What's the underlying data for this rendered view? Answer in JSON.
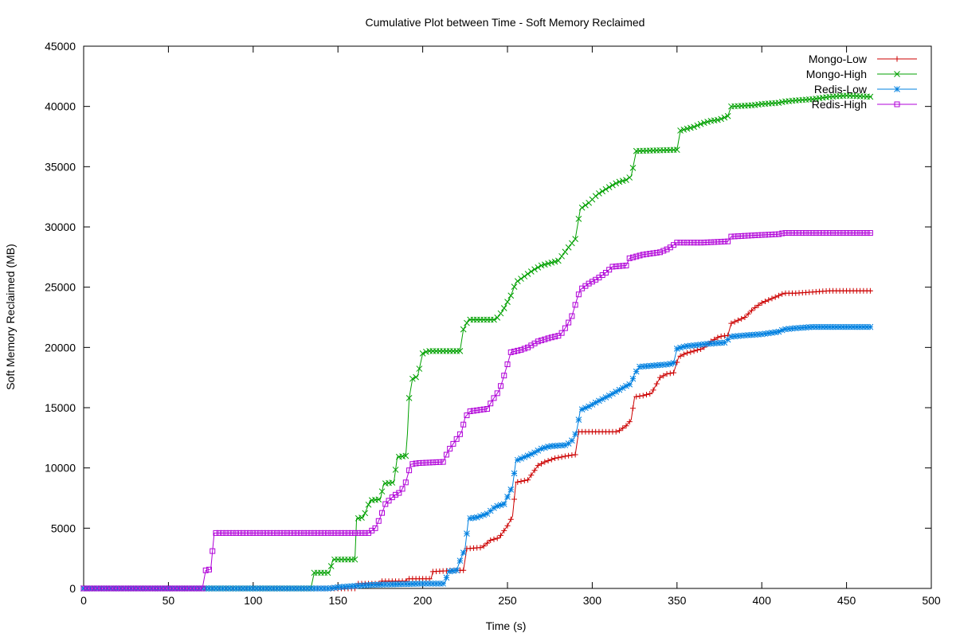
{
  "chart_data": {
    "type": "line",
    "title": "Cumulative Plot between Time - Soft Memory Reclaimed",
    "xlabel": "Time (s)",
    "ylabel": "Soft Memory Reclaimed (MB)",
    "xlim": [
      0,
      500
    ],
    "ylim": [
      0,
      45000
    ],
    "xticks": [
      0,
      50,
      100,
      150,
      200,
      250,
      300,
      350,
      400,
      450,
      500
    ],
    "yticks": [
      0,
      5000,
      10000,
      15000,
      20000,
      25000,
      30000,
      35000,
      40000,
      45000
    ],
    "grid": false,
    "legend_position": "top-right",
    "series": [
      {
        "name": "Mongo-Low",
        "color": "#cc0000",
        "marker": "plus",
        "points": [
          [
            0,
            0
          ],
          [
            160,
            0
          ],
          [
            161,
            400
          ],
          [
            175,
            400
          ],
          [
            176,
            600
          ],
          [
            190,
            600
          ],
          [
            191,
            800
          ],
          [
            205,
            800
          ],
          [
            206,
            1400
          ],
          [
            220,
            1500
          ],
          [
            224,
            1500
          ],
          [
            226,
            3300
          ],
          [
            235,
            3400
          ],
          [
            240,
            4000
          ],
          [
            245,
            4200
          ],
          [
            250,
            5200
          ],
          [
            253,
            6000
          ],
          [
            255,
            8800
          ],
          [
            262,
            9000
          ],
          [
            268,
            10200
          ],
          [
            272,
            10500
          ],
          [
            278,
            10800
          ],
          [
            285,
            11000
          ],
          [
            290,
            11100
          ],
          [
            292,
            13000
          ],
          [
            315,
            13000
          ],
          [
            320,
            13500
          ],
          [
            323,
            14000
          ],
          [
            325,
            15900
          ],
          [
            330,
            16000
          ],
          [
            335,
            16200
          ],
          [
            340,
            17500
          ],
          [
            344,
            17800
          ],
          [
            348,
            17900
          ],
          [
            351,
            19200
          ],
          [
            355,
            19500
          ],
          [
            360,
            19700
          ],
          [
            365,
            19900
          ],
          [
            370,
            20500
          ],
          [
            375,
            20900
          ],
          [
            380,
            21000
          ],
          [
            382,
            22000
          ],
          [
            390,
            22500
          ],
          [
            395,
            23200
          ],
          [
            400,
            23700
          ],
          [
            405,
            24000
          ],
          [
            410,
            24300
          ],
          [
            413,
            24500
          ],
          [
            420,
            24500
          ],
          [
            430,
            24600
          ],
          [
            440,
            24700
          ],
          [
            465,
            24700
          ]
        ]
      },
      {
        "name": "Mongo-High",
        "color": "#00a000",
        "marker": "x",
        "points": [
          [
            0,
            0
          ],
          [
            134,
            0
          ],
          [
            136,
            1300
          ],
          [
            145,
            1300
          ],
          [
            147,
            2400
          ],
          [
            160,
            2400
          ],
          [
            161,
            5800
          ],
          [
            165,
            5900
          ],
          [
            169,
            7300
          ],
          [
            175,
            7400
          ],
          [
            177,
            8700
          ],
          [
            183,
            8800
          ],
          [
            185,
            10900
          ],
          [
            190,
            11000
          ],
          [
            191,
            12800
          ],
          [
            192,
            15800
          ],
          [
            194,
            17400
          ],
          [
            197,
            17600
          ],
          [
            200,
            19500
          ],
          [
            203,
            19700
          ],
          [
            222,
            19700
          ],
          [
            224,
            21500
          ],
          [
            227,
            22300
          ],
          [
            243,
            22300
          ],
          [
            247,
            23000
          ],
          [
            252,
            24300
          ],
          [
            255,
            25400
          ],
          [
            260,
            25900
          ],
          [
            265,
            26400
          ],
          [
            270,
            26800
          ],
          [
            275,
            27000
          ],
          [
            280,
            27200
          ],
          [
            286,
            28300
          ],
          [
            290,
            29000
          ],
          [
            293,
            31500
          ],
          [
            298,
            32000
          ],
          [
            303,
            32700
          ],
          [
            310,
            33300
          ],
          [
            315,
            33700
          ],
          [
            320,
            33900
          ],
          [
            323,
            34200
          ],
          [
            326,
            36300
          ],
          [
            350,
            36400
          ],
          [
            352,
            38000
          ],
          [
            360,
            38300
          ],
          [
            365,
            38600
          ],
          [
            370,
            38800
          ],
          [
            375,
            38900
          ],
          [
            380,
            39200
          ],
          [
            382,
            40000
          ],
          [
            395,
            40100
          ],
          [
            400,
            40200
          ],
          [
            410,
            40300
          ],
          [
            413,
            40400
          ],
          [
            420,
            40500
          ],
          [
            430,
            40600
          ],
          [
            440,
            40800
          ],
          [
            450,
            40900
          ],
          [
            465,
            40800
          ]
        ]
      },
      {
        "name": "Redis-Low",
        "color": "#0080e0",
        "marker": "star",
        "points": [
          [
            0,
            0
          ],
          [
            145,
            0
          ],
          [
            150,
            100
          ],
          [
            160,
            200
          ],
          [
            170,
            300
          ],
          [
            185,
            350
          ],
          [
            200,
            400
          ],
          [
            213,
            400
          ],
          [
            215,
            1400
          ],
          [
            220,
            1500
          ],
          [
            222,
            2300
          ],
          [
            225,
            3300
          ],
          [
            227,
            5800
          ],
          [
            232,
            5900
          ],
          [
            238,
            6200
          ],
          [
            243,
            6800
          ],
          [
            248,
            7000
          ],
          [
            250,
            7600
          ],
          [
            253,
            8500
          ],
          [
            255,
            10600
          ],
          [
            260,
            10900
          ],
          [
            265,
            11200
          ],
          [
            270,
            11600
          ],
          [
            275,
            11800
          ],
          [
            285,
            11900
          ],
          [
            289,
            12400
          ],
          [
            291,
            13200
          ],
          [
            293,
            14800
          ],
          [
            298,
            15100
          ],
          [
            303,
            15500
          ],
          [
            310,
            16000
          ],
          [
            315,
            16400
          ],
          [
            320,
            16800
          ],
          [
            323,
            17000
          ],
          [
            325,
            17800
          ],
          [
            328,
            18400
          ],
          [
            345,
            18600
          ],
          [
            348,
            18700
          ],
          [
            350,
            19900
          ],
          [
            355,
            20100
          ],
          [
            362,
            20200
          ],
          [
            368,
            20300
          ],
          [
            378,
            20400
          ],
          [
            382,
            20900
          ],
          [
            390,
            21000
          ],
          [
            400,
            21100
          ],
          [
            410,
            21300
          ],
          [
            413,
            21500
          ],
          [
            420,
            21600
          ],
          [
            430,
            21700
          ],
          [
            440,
            21700
          ],
          [
            465,
            21700
          ]
        ]
      },
      {
        "name": "Redis-High",
        "color": "#b000d8",
        "marker": "square",
        "points": [
          [
            0,
            0
          ],
          [
            70,
            0
          ],
          [
            72,
            1500
          ],
          [
            75,
            1600
          ],
          [
            77,
            4600
          ],
          [
            168,
            4600
          ],
          [
            172,
            5000
          ],
          [
            175,
            5900
          ],
          [
            178,
            7000
          ],
          [
            183,
            7700
          ],
          [
            187,
            8000
          ],
          [
            190,
            8800
          ],
          [
            193,
            10300
          ],
          [
            197,
            10400
          ],
          [
            212,
            10500
          ],
          [
            215,
            11400
          ],
          [
            220,
            12400
          ],
          [
            223,
            13000
          ],
          [
            225,
            14200
          ],
          [
            228,
            14700
          ],
          [
            238,
            14900
          ],
          [
            242,
            15800
          ],
          [
            245,
            16400
          ],
          [
            247,
            17200
          ],
          [
            250,
            18600
          ],
          [
            252,
            19600
          ],
          [
            258,
            19800
          ],
          [
            262,
            20000
          ],
          [
            268,
            20500
          ],
          [
            275,
            20800
          ],
          [
            281,
            21000
          ],
          [
            285,
            21800
          ],
          [
            288,
            22600
          ],
          [
            291,
            24000
          ],
          [
            293,
            24800
          ],
          [
            298,
            25300
          ],
          [
            303,
            25700
          ],
          [
            308,
            26200
          ],
          [
            312,
            26700
          ],
          [
            320,
            26800
          ],
          [
            322,
            27400
          ],
          [
            330,
            27700
          ],
          [
            340,
            27900
          ],
          [
            345,
            28200
          ],
          [
            350,
            28700
          ],
          [
            365,
            28700
          ],
          [
            380,
            28800
          ],
          [
            382,
            29200
          ],
          [
            395,
            29300
          ],
          [
            410,
            29400
          ],
          [
            413,
            29500
          ],
          [
            440,
            29500
          ],
          [
            465,
            29500
          ]
        ]
      }
    ]
  }
}
